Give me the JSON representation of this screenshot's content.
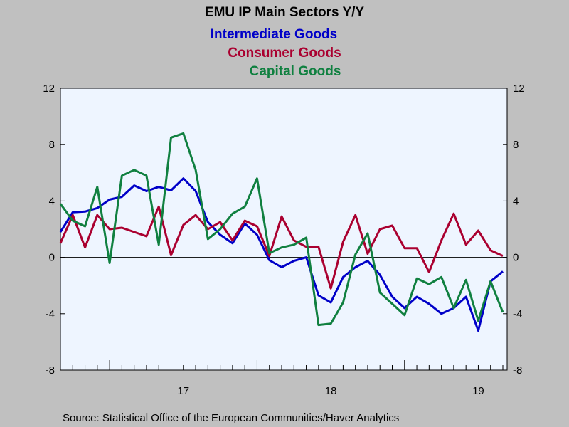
{
  "chart_data": {
    "type": "line",
    "title": "EMU IP Main Sectors Y/Y",
    "source": "Source:  Statistical Office of the European Communities/Haver Analytics",
    "ylim": [
      -8,
      12
    ],
    "yticks": [
      12,
      8,
      4,
      0,
      -4,
      -8
    ],
    "ytick_labels": [
      "12",
      "8",
      "4",
      "0",
      "-4",
      "-8"
    ],
    "xtick_labels": [
      "17",
      "18",
      "19"
    ],
    "grid": false,
    "legend_position": "top-center",
    "background": "#eef5ff",
    "series": [
      {
        "name": "Intermediate Goods",
        "color": "#0000c8",
        "values": [
          1.8,
          3.2,
          3.25,
          3.5,
          4.1,
          4.3,
          5.1,
          4.7,
          5.0,
          4.75,
          5.6,
          4.7,
          2.5,
          1.6,
          1.0,
          2.4,
          1.6,
          -0.2,
          -0.7,
          -0.25,
          0.0,
          -2.7,
          -3.2,
          -1.4,
          -0.7,
          -0.25,
          -1.25,
          -2.8,
          -3.6,
          -2.8,
          -3.3,
          -4.0,
          -3.6,
          -2.8,
          -5.2,
          -1.7,
          -1.0
        ]
      },
      {
        "name": "Consumer Goods",
        "color": "#aa0030",
        "values": [
          1.0,
          3.0,
          0.7,
          3.0,
          2.0,
          2.1,
          1.8,
          1.5,
          3.6,
          0.15,
          2.3,
          3.0,
          2.0,
          2.5,
          1.2,
          2.6,
          2.2,
          0.1,
          2.9,
          1.2,
          0.75,
          0.75,
          -2.2,
          1.1,
          3.0,
          0.25,
          2.0,
          2.25,
          0.65,
          0.65,
          -1.05,
          1.2,
          3.1,
          0.9,
          1.9,
          0.5,
          0.1
        ]
      },
      {
        "name": "Capital Goods",
        "color": "#108040",
        "values": [
          3.8,
          2.6,
          2.2,
          5.0,
          -0.4,
          5.8,
          6.2,
          5.8,
          0.9,
          8.5,
          8.8,
          6.2,
          1.3,
          2.0,
          3.1,
          3.6,
          5.6,
          0.3,
          0.7,
          0.9,
          1.4,
          -4.8,
          -4.7,
          -3.2,
          0.2,
          1.7,
          -2.5,
          -3.3,
          -4.1,
          -1.5,
          -1.9,
          -1.4,
          -3.6,
          -1.6,
          -4.5,
          -1.7,
          -3.9
        ]
      }
    ]
  }
}
